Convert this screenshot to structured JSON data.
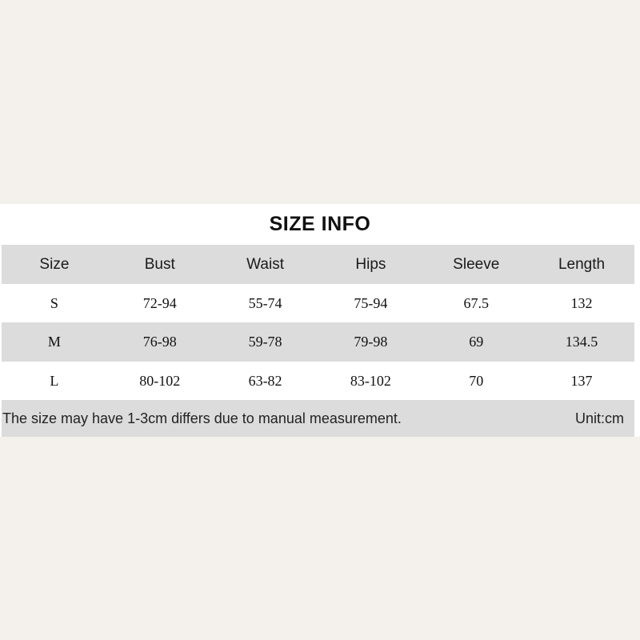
{
  "title": "SIZE INFO",
  "table": {
    "columns": [
      "Size",
      "Bust",
      "Waist",
      "Hips",
      "Sleeve",
      "Length"
    ],
    "rows": [
      {
        "cells": [
          "S",
          "72-94",
          "55-74",
          "75-94",
          "67.5",
          "132"
        ]
      },
      {
        "cells": [
          "M",
          "76-98",
          "59-78",
          "79-98",
          "69",
          "134.5"
        ]
      },
      {
        "cells": [
          "L",
          "80-102",
          "63-82",
          "83-102",
          "70",
          "137"
        ]
      }
    ]
  },
  "note": {
    "text": "The size may have 1-3cm differs due to manual measurement.",
    "unit": "Unit:cm"
  },
  "colors": {
    "page_background": "#f4f0ec",
    "sheet_background": "#ffffff",
    "row_shade": "#dcdcdc",
    "text": "#111111"
  }
}
